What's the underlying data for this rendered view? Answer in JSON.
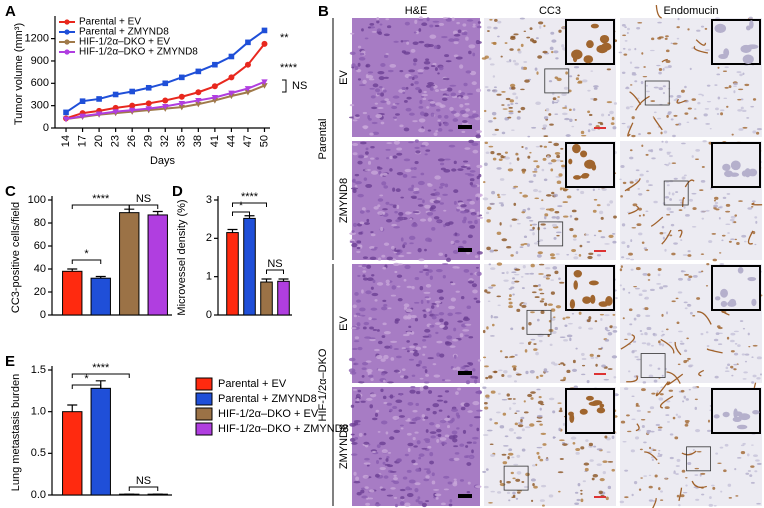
{
  "chart_data": [
    {
      "type": "line",
      "label": "A",
      "ylabel": "Tumor volume (mm³)",
      "xlabel": "Days",
      "x": [
        14,
        17,
        20,
        23,
        26,
        29,
        32,
        35,
        38,
        41,
        44,
        47,
        50
      ],
      "xlim": [
        12,
        51
      ],
      "xticks": [
        14,
        17,
        20,
        23,
        26,
        29,
        32,
        35,
        38,
        41,
        44,
        47,
        50
      ],
      "ylim": [
        0,
        1450
      ],
      "yticks": [
        0,
        300,
        600,
        900,
        1200
      ],
      "series": [
        {
          "name": "Parental + EV",
          "color": "#e8281e",
          "values": [
            130,
            200,
            230,
            270,
            300,
            330,
            370,
            420,
            480,
            560,
            680,
            850,
            1130
          ]
        },
        {
          "name": "Parental + ZMYND8",
          "color": "#1f4fd8",
          "values": [
            210,
            360,
            390,
            450,
            490,
            540,
            600,
            680,
            760,
            850,
            960,
            1150,
            1310
          ]
        },
        {
          "name": "HIF-1/2α–DKO + EV",
          "color": "#a07a4a",
          "values": [
            120,
            150,
            180,
            200,
            220,
            240,
            260,
            280,
            320,
            370,
            430,
            480,
            570
          ]
        },
        {
          "name": "HIF-1/2α–DKO + ZMYND8",
          "color": "#b03ee0",
          "values": [
            120,
            160,
            190,
            220,
            240,
            260,
            290,
            330,
            370,
            410,
            470,
            530,
            620
          ]
        }
      ],
      "annotations": [
        "**",
        "****",
        "NS"
      ]
    },
    {
      "type": "bar",
      "label": "C",
      "ylabel": "CC3-positive cells/field",
      "ylim": [
        0,
        100
      ],
      "yticks": [
        0,
        20,
        40,
        60,
        80,
        100
      ],
      "values": [
        38,
        32,
        89,
        87
      ],
      "errors": [
        2,
        1.5,
        3,
        3
      ],
      "colors": [
        "#ff2a0f",
        "#1f4fd8",
        "#9b7246",
        "#b03ee0"
      ],
      "annotations": [
        "*",
        "****",
        "NS"
      ]
    },
    {
      "type": "bar",
      "label": "D",
      "ylabel": "Microvessel density (%)",
      "ylim": [
        0,
        3
      ],
      "yticks": [
        0,
        1,
        2,
        3
      ],
      "values": [
        2.15,
        2.52,
        0.86,
        0.88
      ],
      "errors": [
        0.08,
        0.07,
        0.08,
        0.06
      ],
      "colors": [
        "#ff2a0f",
        "#1f4fd8",
        "#9b7246",
        "#b03ee0"
      ],
      "annotations": [
        "*",
        "****",
        "NS"
      ]
    },
    {
      "type": "bar",
      "label": "E",
      "ylabel": "Lung metastasis burden",
      "ylim": [
        0,
        1.5
      ],
      "yticks": [
        {
          "value": 0,
          "label": "0.0"
        },
        0.5,
        {
          "value": 1,
          "label": "1.0"
        },
        1.5
      ],
      "values": [
        1.0,
        1.28,
        0.01,
        0.01
      ],
      "errors": [
        0.08,
        0.09,
        0,
        0
      ],
      "colors": [
        "#ff2a0f",
        "#1f4fd8",
        "#9b7246",
        "#b03ee0"
      ],
      "legend": [
        "Parental + EV",
        "Parental + ZMYND8",
        "HIF-1/2α–DKO + EV",
        "HIF-1/2α–DKO + ZMYND8"
      ],
      "annotations": [
        "*",
        "****",
        "NS"
      ]
    }
  ],
  "panel_b": {
    "label": "B",
    "columns": [
      "H&E",
      "CC3",
      "Endomucin"
    ],
    "rows": [
      "EV",
      "ZMYND8",
      "EV",
      "ZMYND8"
    ],
    "groups": [
      "Parental",
      "HIF-1/2α–DKO"
    ]
  }
}
